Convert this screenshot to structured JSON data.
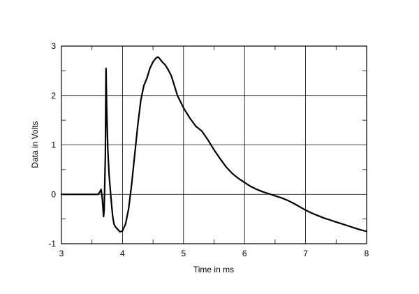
{
  "chart_data": {
    "type": "line",
    "title": "",
    "xlabel": "Time in ms",
    "ylabel": "Data in Volts",
    "xlim": [
      3,
      8
    ],
    "ylim": [
      -1,
      3
    ],
    "xticks": [
      3,
      4,
      5,
      6,
      7,
      8
    ],
    "yticks": [
      -1,
      0,
      1,
      2,
      3
    ],
    "xtick_labels": [
      "3",
      "4",
      "5",
      "6",
      "7",
      "8"
    ],
    "ytick_labels": [
      "-1",
      "0",
      "1",
      "2",
      "3"
    ],
    "grid": true,
    "legend": "none",
    "line_color": "#000000",
    "series": [
      {
        "x": [
          3.0,
          3.3,
          3.6,
          3.63,
          3.65,
          3.67,
          3.69,
          3.7,
          3.72,
          3.73,
          3.74,
          3.76,
          3.78,
          3.8,
          3.82,
          3.84,
          3.86,
          3.88,
          3.9,
          3.93,
          3.96,
          4.0,
          4.05,
          4.1,
          4.15,
          4.2,
          4.25,
          4.3,
          4.35,
          4.4,
          4.45,
          4.5,
          4.55,
          4.58,
          4.6,
          4.65,
          4.7,
          4.75,
          4.8,
          4.85,
          4.9,
          5.0,
          5.1,
          5.2,
          5.3,
          5.4,
          5.5,
          5.6,
          5.7,
          5.8,
          5.9,
          6.0,
          6.1,
          6.2,
          6.3,
          6.4,
          6.5,
          6.6,
          6.7,
          6.8,
          6.9,
          7.0,
          7.1,
          7.2,
          7.3,
          7.4,
          7.5,
          7.6,
          7.7,
          7.8,
          7.9,
          8.0
        ],
        "y": [
          0.0,
          0.0,
          0.0,
          0.05,
          0.1,
          -0.1,
          -0.45,
          -0.3,
          0.8,
          2.55,
          1.8,
          0.9,
          0.4,
          0.1,
          -0.2,
          -0.45,
          -0.6,
          -0.65,
          -0.68,
          -0.72,
          -0.76,
          -0.74,
          -0.6,
          -0.3,
          0.2,
          0.8,
          1.4,
          1.9,
          2.2,
          2.35,
          2.55,
          2.68,
          2.76,
          2.78,
          2.76,
          2.68,
          2.62,
          2.52,
          2.4,
          2.2,
          2.0,
          1.75,
          1.55,
          1.38,
          1.28,
          1.1,
          0.9,
          0.72,
          0.55,
          0.42,
          0.32,
          0.24,
          0.16,
          0.1,
          0.05,
          0.01,
          -0.03,
          -0.07,
          -0.12,
          -0.18,
          -0.25,
          -0.32,
          -0.38,
          -0.43,
          -0.48,
          -0.52,
          -0.56,
          -0.6,
          -0.64,
          -0.68,
          -0.72,
          -0.75
        ]
      }
    ]
  }
}
